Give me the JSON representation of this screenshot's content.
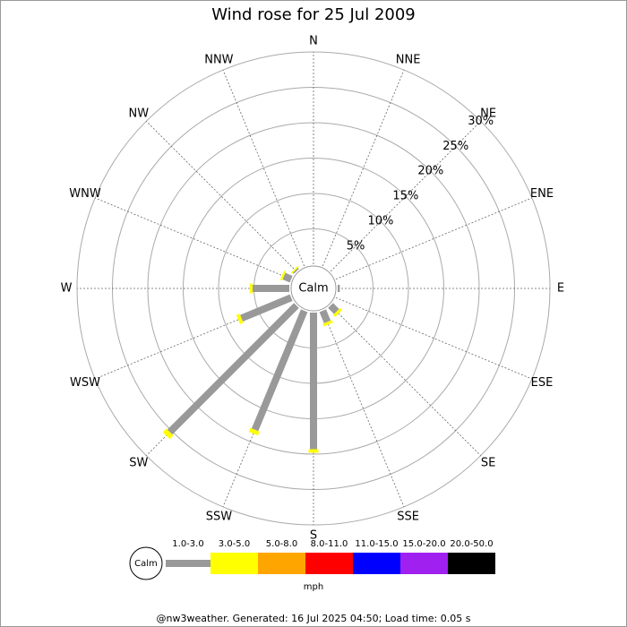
{
  "chart_data": {
    "type": "windrose",
    "title": "Wind rose for 25 Jul 2009",
    "categories": [
      "N",
      "NNE",
      "NE",
      "ENE",
      "E",
      "ESE",
      "SE",
      "SSE",
      "S",
      "SSW",
      "SW",
      "WSW",
      "W",
      "WNW",
      "NW",
      "NNW"
    ],
    "calm_label": "Calm",
    "rlim": [
      0,
      30
    ],
    "rticks": [
      {
        "value": 5,
        "label": "5%"
      },
      {
        "value": 10,
        "label": "10%"
      },
      {
        "value": 15,
        "label": "15%"
      },
      {
        "value": 20,
        "label": "20%"
      },
      {
        "value": 25,
        "label": "25%"
      },
      {
        "value": 30,
        "label": "30%"
      }
    ],
    "grid": true,
    "series": [
      {
        "name": "1.0-3.0",
        "color": "#999999",
        "values": [
          0,
          0,
          0,
          0,
          0.3,
          0,
          1.2,
          1.7,
          19.3,
          18.2,
          25.3,
          7.6,
          5.2,
          1.1,
          0.2,
          0
        ]
      },
      {
        "name": "3.0-5.0",
        "color": "#ffff00",
        "values": [
          0,
          0,
          0,
          0,
          0,
          0,
          0.4,
          0.4,
          0.5,
          0.6,
          0.7,
          0.5,
          0.4,
          0.3,
          0.2,
          0
        ]
      },
      {
        "name": "5.0-8.0",
        "color": "#ffa500",
        "values": [
          0,
          0,
          0,
          0,
          0,
          0,
          0,
          0,
          0,
          0,
          0,
          0,
          0,
          0,
          0,
          0
        ]
      },
      {
        "name": "8.0-11.0",
        "color": "#ff0000",
        "values": [
          0,
          0,
          0,
          0,
          0,
          0,
          0,
          0,
          0,
          0,
          0,
          0,
          0,
          0,
          0,
          0
        ]
      },
      {
        "name": "11.0-15.0",
        "color": "#0000ff",
        "values": [
          0,
          0,
          0,
          0,
          0,
          0,
          0,
          0,
          0,
          0,
          0,
          0,
          0,
          0,
          0,
          0
        ]
      },
      {
        "name": "15.0-20.0",
        "color": "#a020f0",
        "values": [
          0,
          0,
          0,
          0,
          0,
          0,
          0,
          0,
          0,
          0,
          0,
          0,
          0,
          0,
          0,
          0
        ]
      },
      {
        "name": "20.0-50.0",
        "color": "#000000",
        "values": [
          0,
          0,
          0,
          0,
          0,
          0,
          0,
          0,
          0,
          0,
          0,
          0,
          0,
          0,
          0,
          0
        ]
      }
    ],
    "legend_unit": "mph",
    "footer": "@nw3weather. Generated: 16 Jul 2025 04:50; Load time: 0.05 s"
  }
}
